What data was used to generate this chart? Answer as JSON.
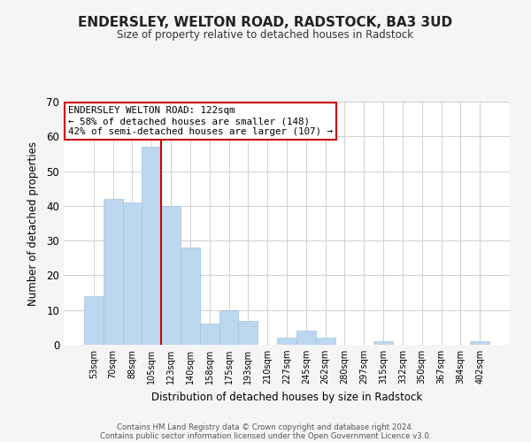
{
  "title": "ENDERSLEY, WELTON ROAD, RADSTOCK, BA3 3UD",
  "subtitle": "Size of property relative to detached houses in Radstock",
  "xlabel": "Distribution of detached houses by size in Radstock",
  "ylabel": "Number of detached properties",
  "bar_labels": [
    "53sqm",
    "70sqm",
    "88sqm",
    "105sqm",
    "123sqm",
    "140sqm",
    "158sqm",
    "175sqm",
    "193sqm",
    "210sqm",
    "227sqm",
    "245sqm",
    "262sqm",
    "280sqm",
    "297sqm",
    "315sqm",
    "332sqm",
    "350sqm",
    "367sqm",
    "384sqm",
    "402sqm"
  ],
  "bar_heights": [
    14,
    42,
    41,
    57,
    40,
    28,
    6,
    10,
    7,
    0,
    2,
    4,
    2,
    0,
    0,
    1,
    0,
    0,
    0,
    0,
    1
  ],
  "bar_color": "#bdd7ee",
  "bar_edge_color": "#9ec4e0",
  "vline_color": "#cc0000",
  "ylim": [
    0,
    70
  ],
  "yticks": [
    0,
    10,
    20,
    30,
    40,
    50,
    60,
    70
  ],
  "annotation_title": "ENDERSLEY WELTON ROAD: 122sqm",
  "annotation_line1": "← 58% of detached houses are smaller (148)",
  "annotation_line2": "42% of semi-detached houses are larger (107) →",
  "footer_line1": "Contains HM Land Registry data © Crown copyright and database right 2024.",
  "footer_line2": "Contains public sector information licensed under the Open Government Licence v3.0.",
  "bg_color": "#f5f5f5",
  "plot_bg_color": "#ffffff",
  "grid_color": "#d0d0d0"
}
